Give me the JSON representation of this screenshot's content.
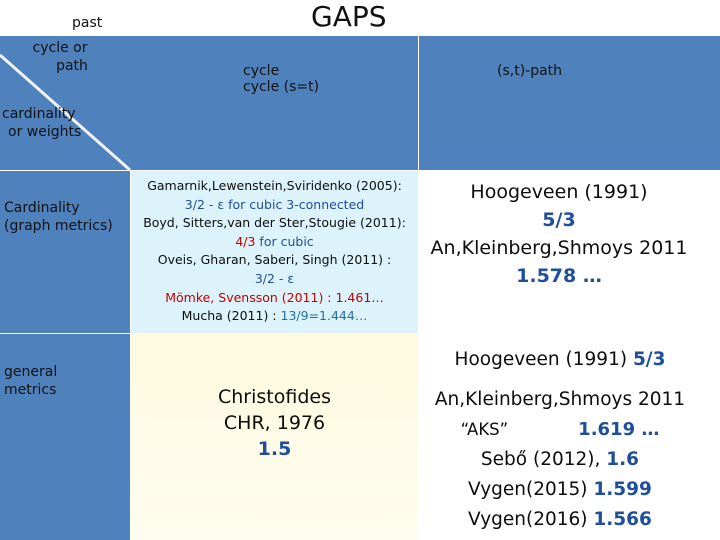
{
  "title": "GAPS",
  "corner": {
    "past": "past",
    "cycle_or_path_1": "cycle or",
    "cycle_or_path_2": "path",
    "cardinality_1": "cardinality",
    "cardinality_2": "or  weights"
  },
  "col_headers": {
    "cycle_1": "cycle",
    "cycle_2": "cycle (s=t)",
    "path": "(s,t)-path"
  },
  "row_headers": {
    "cardinality_1": "Cardinality",
    "cardinality_2": "(graph metrics)",
    "general_1": "general",
    "general_2": "metrics"
  },
  "card_cycle": {
    "l1": "Gamarnik,Lewenstein,Sviridenko (2005):",
    "l2": "3/2 - ε for cubic 3-connected",
    "l3": "Boyd, Sitters,van der Ster,Stougie (2011):",
    "l4a": "4/3",
    "l4b": " for cubic",
    "l5": "Oveis, Gharan, Saberi, Singh (2011) :",
    "l6": "3/2 - ε",
    "l7": "Mömke, Svensson (2011) : 1.461…",
    "l8a": "Mucha (2011) : ",
    "l8b": "13/9=1.444…"
  },
  "card_path": {
    "l1": "Hoogeveen (1991)",
    "l2": "5/3",
    "l3": "An,Kleinberg,Shmoys 2011",
    "l4": "1.578 …"
  },
  "gen_cycle": {
    "l1": "Christofides",
    "l2": "CHR, 1976",
    "l3": "1.5"
  },
  "gen_path": {
    "l1a": "Hoogeveen (1991)  ",
    "l1b": "5/3",
    "l2": "An,Kleinberg,Shmoys 2011",
    "l3a": "“AKS”",
    "l3b": "1.619 …",
    "l4a": "Sebő (2012), ",
    "l4b": "1.6",
    "l5a": "Vygen(2015) ",
    "l5b": "1.599",
    "l6a": "Vygen(2016) ",
    "l6b": "1.566"
  }
}
